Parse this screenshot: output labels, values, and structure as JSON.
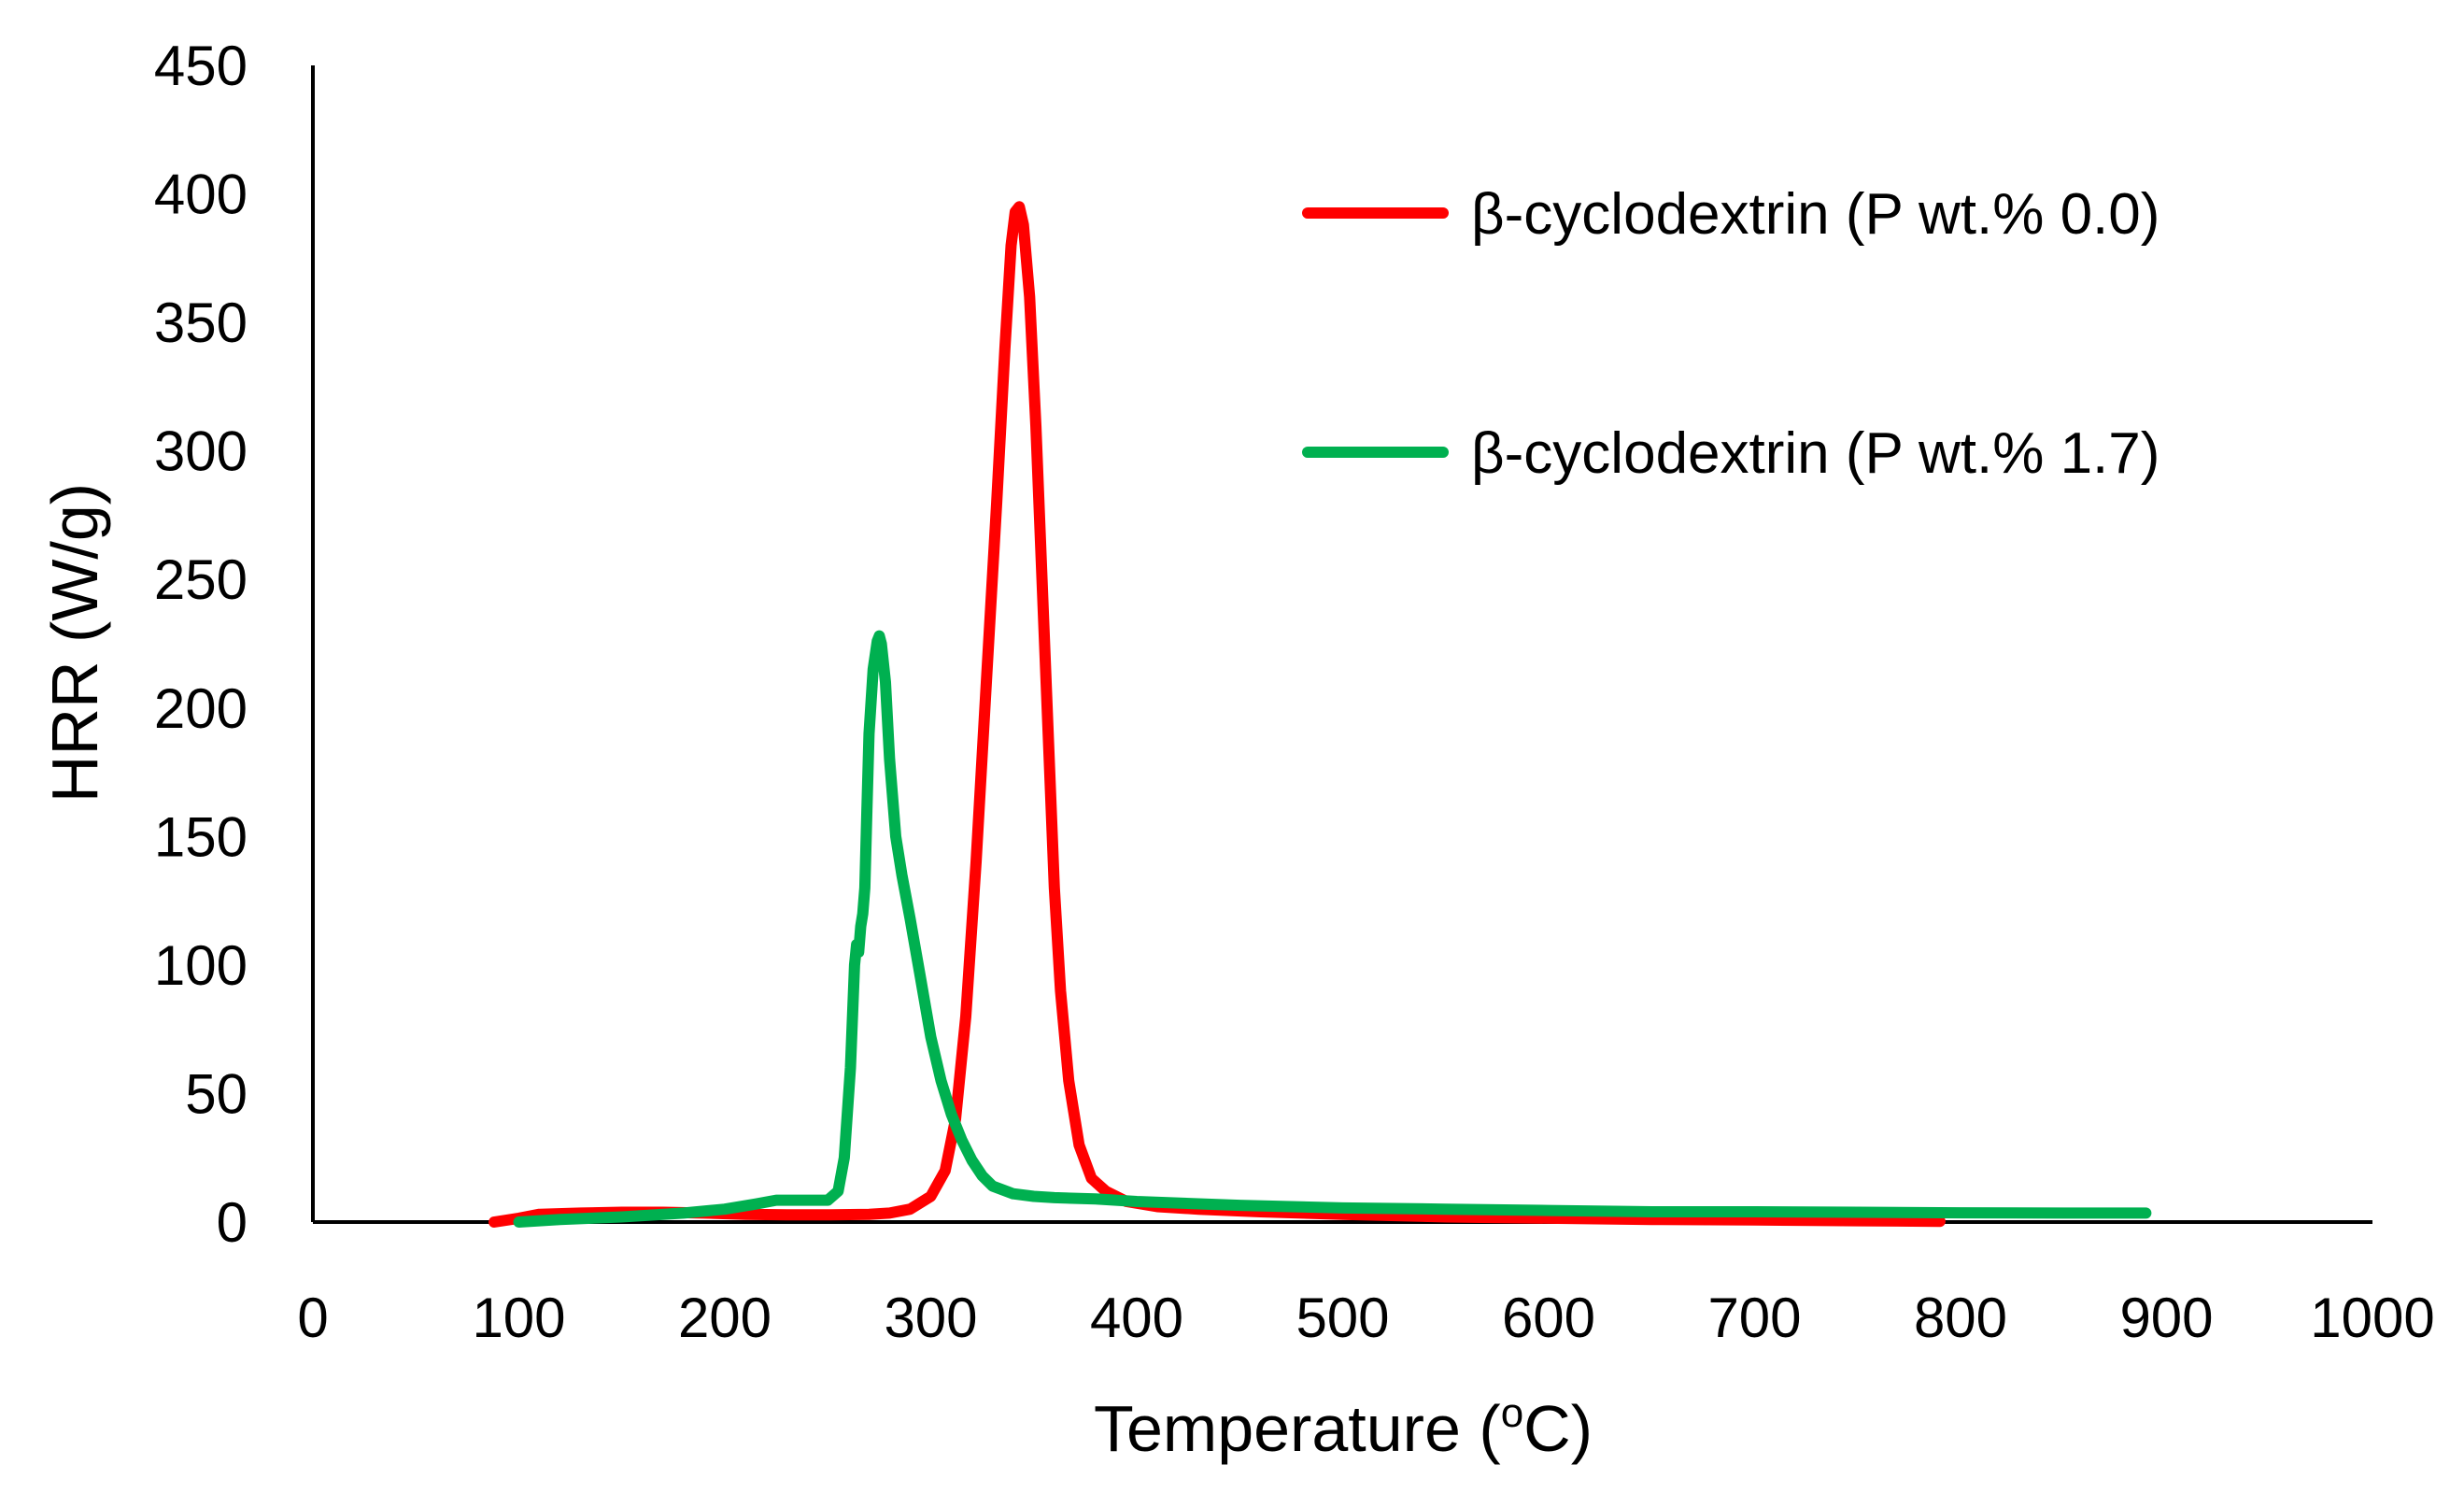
{
  "chart_data": {
    "type": "line",
    "title": "",
    "xlabel": "Temperature",
    "xlabel_unit_superscript": "o",
    "xlabel_unit": "C",
    "ylabel": "HRR (W/g)",
    "xlim": [
      0,
      1000
    ],
    "ylim": [
      0,
      450
    ],
    "x_ticks": [
      0,
      100,
      200,
      300,
      400,
      500,
      600,
      700,
      800,
      900,
      1000
    ],
    "y_ticks": [
      0,
      50,
      100,
      150,
      200,
      250,
      300,
      350,
      400,
      450
    ],
    "grid": false,
    "legend_position": "top-right",
    "series": [
      {
        "name": "β-cyclodextrin (P wt.% 0.0)",
        "color": "#ff0000",
        "points": [
          [
            88,
            0
          ],
          [
            100,
            1.5
          ],
          [
            110,
            3
          ],
          [
            130,
            3.5
          ],
          [
            150,
            3.8
          ],
          [
            170,
            3.8
          ],
          [
            190,
            3.5
          ],
          [
            210,
            3
          ],
          [
            230,
            2.8
          ],
          [
            250,
            2.8
          ],
          [
            270,
            3
          ],
          [
            280,
            3.5
          ],
          [
            290,
            5
          ],
          [
            300,
            10
          ],
          [
            307,
            20
          ],
          [
            312,
            40
          ],
          [
            317,
            80
          ],
          [
            322,
            140
          ],
          [
            327,
            210
          ],
          [
            332,
            280
          ],
          [
            336,
            340
          ],
          [
            339,
            380
          ],
          [
            341,
            393
          ],
          [
            343,
            395
          ],
          [
            345,
            388
          ],
          [
            348,
            360
          ],
          [
            351,
            310
          ],
          [
            354,
            250
          ],
          [
            357,
            190
          ],
          [
            360,
            130
          ],
          [
            363,
            90
          ],
          [
            367,
            55
          ],
          [
            372,
            30
          ],
          [
            378,
            17
          ],
          [
            385,
            12
          ],
          [
            395,
            8
          ],
          [
            410,
            6
          ],
          [
            430,
            5
          ],
          [
            460,
            4
          ],
          [
            500,
            3
          ],
          [
            550,
            2
          ],
          [
            600,
            1.5
          ],
          [
            650,
            1
          ],
          [
            700,
            0.8
          ],
          [
            750,
            0.5
          ],
          [
            790,
            0.3
          ]
        ]
      },
      {
        "name": "β-cyclodextrin (P wt.% 1.7)",
        "color": "#00b050",
        "points": [
          [
            100,
            0
          ],
          [
            120,
            1
          ],
          [
            150,
            2
          ],
          [
            180,
            3.5
          ],
          [
            200,
            5
          ],
          [
            215,
            7
          ],
          [
            225,
            8.5
          ],
          [
            240,
            8.5
          ],
          [
            250,
            8.5
          ],
          [
            255,
            12
          ],
          [
            258,
            25
          ],
          [
            261,
            60
          ],
          [
            263,
            100
          ],
          [
            264,
            108
          ],
          [
            265,
            105
          ],
          [
            266,
            115
          ],
          [
            267,
            120
          ],
          [
            268,
            130
          ],
          [
            269,
            160
          ],
          [
            270,
            190
          ],
          [
            272,
            215
          ],
          [
            274,
            226
          ],
          [
            275,
            228
          ],
          [
            276,
            225
          ],
          [
            278,
            210
          ],
          [
            280,
            180
          ],
          [
            283,
            150
          ],
          [
            286,
            135
          ],
          [
            290,
            118
          ],
          [
            295,
            95
          ],
          [
            300,
            72
          ],
          [
            305,
            55
          ],
          [
            310,
            42
          ],
          [
            315,
            32
          ],
          [
            320,
            24
          ],
          [
            325,
            18
          ],
          [
            330,
            14
          ],
          [
            340,
            11
          ],
          [
            350,
            10
          ],
          [
            360,
            9.5
          ],
          [
            380,
            9
          ],
          [
            400,
            8
          ],
          [
            450,
            6.5
          ],
          [
            500,
            5.5
          ],
          [
            550,
            5
          ],
          [
            600,
            4.5
          ],
          [
            650,
            4
          ],
          [
            700,
            4
          ],
          [
            750,
            3.8
          ],
          [
            800,
            3.6
          ],
          [
            850,
            3.5
          ],
          [
            890,
            3.5
          ]
        ]
      }
    ]
  }
}
